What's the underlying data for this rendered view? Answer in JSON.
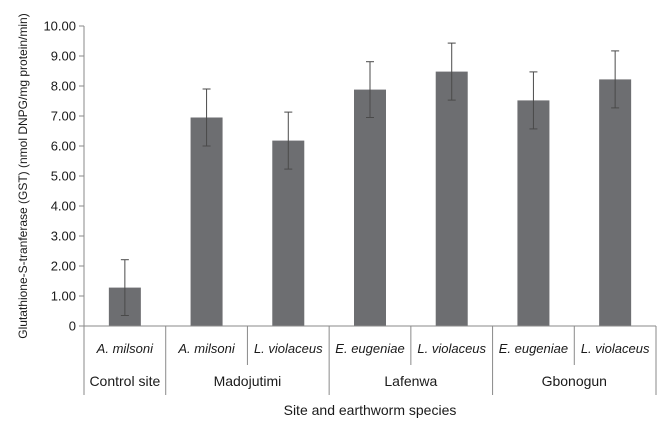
{
  "chart_data": {
    "type": "bar",
    "title": "",
    "xlabel": "Site and earthworm species",
    "ylabel": "Glutathione-S-tranferase (GST) (nmol DNPG/mg protein/min)",
    "ylim": [
      0,
      10
    ],
    "ytick_labels": [
      "0",
      "1.00",
      "2.00",
      "3.00",
      "4.00",
      "5.00",
      "6.00",
      "7.00",
      "8.00",
      "9.00",
      "10.00"
    ],
    "categories": [
      "A. milsoni",
      "A. milsoni",
      "L. violaceus",
      "E. eugeniae",
      "L. violaceus",
      "E. eugeniae",
      "L. violaceus"
    ],
    "groups": [
      {
        "label": "Control site",
        "count": 1
      },
      {
        "label": "Madojutimi",
        "count": 2
      },
      {
        "label": "Lafenwa",
        "count": 2
      },
      {
        "label": "Gbonogun",
        "count": 2
      }
    ],
    "values": [
      1.28,
      6.95,
      6.18,
      7.88,
      8.48,
      7.52,
      8.22
    ],
    "errors": [
      0.93,
      0.95,
      0.95,
      0.93,
      0.95,
      0.95,
      0.95
    ],
    "grid": false,
    "legend": "none",
    "bar_color": "#6d6e71"
  }
}
